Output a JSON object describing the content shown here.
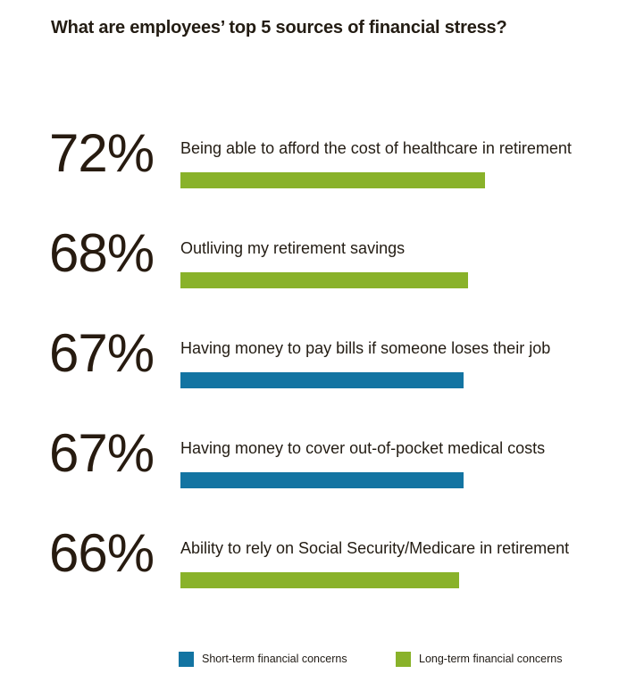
{
  "title": "What are employees’ top 5 sources of financial stress?",
  "colors": {
    "short_term_blue": "#1374a2",
    "long_term_green": "#89b22a",
    "text": "#231c13"
  },
  "rows": [
    {
      "pct_label": "72%",
      "value": 72,
      "label": "Being able to afford the cost of healthcare in retirement",
      "category": "long-term",
      "color": "#89b22a"
    },
    {
      "pct_label": "68%",
      "value": 68,
      "label": "Outliving my retirement savings",
      "category": "long-term",
      "color": "#89b22a"
    },
    {
      "pct_label": "67%",
      "value": 67,
      "label": "Having money to pay bills if someone loses their job",
      "category": "short-term",
      "color": "#1374a2"
    },
    {
      "pct_label": "67%",
      "value": 67,
      "label": "Having money to cover out-of-pocket medical costs",
      "category": "short-term",
      "color": "#1374a2"
    },
    {
      "pct_label": "66%",
      "value": 66,
      "label": "Ability to rely on Social Security/Medicare in retirement",
      "category": "long-term",
      "color": "#89b22a"
    }
  ],
  "legend": [
    {
      "label": "Short-term financial concerns",
      "color": "#1374a2"
    },
    {
      "label": "Long-term financial concerns",
      "color": "#89b22a"
    }
  ],
  "chart_data": {
    "type": "bar",
    "orientation": "horizontal",
    "title": "What are employees’ top 5 sources of financial stress?",
    "categories": [
      "Being able to afford the cost of healthcare in retirement",
      "Outliving my retirement savings",
      "Having money to pay bills if someone loses their job",
      "Having money to cover out-of-pocket medical costs",
      "Ability to rely on Social Security/Medicare in retirement"
    ],
    "values": [
      72,
      68,
      67,
      67,
      66
    ],
    "series_membership": [
      "Long-term financial concerns",
      "Long-term financial concerns",
      "Short-term financial concerns",
      "Short-term financial concerns",
      "Long-term financial concerns"
    ],
    "data_labels": [
      "72%",
      "68%",
      "67%",
      "67%",
      "66%"
    ],
    "xlabel": "",
    "ylabel": "",
    "xlim": [
      0,
      100
    ],
    "grid": false,
    "legend_position": "bottom",
    "legend": [
      {
        "name": "Short-term financial concerns",
        "color": "#1374a2"
      },
      {
        "name": "Long-term financial concerns",
        "color": "#89b22a"
      }
    ]
  }
}
